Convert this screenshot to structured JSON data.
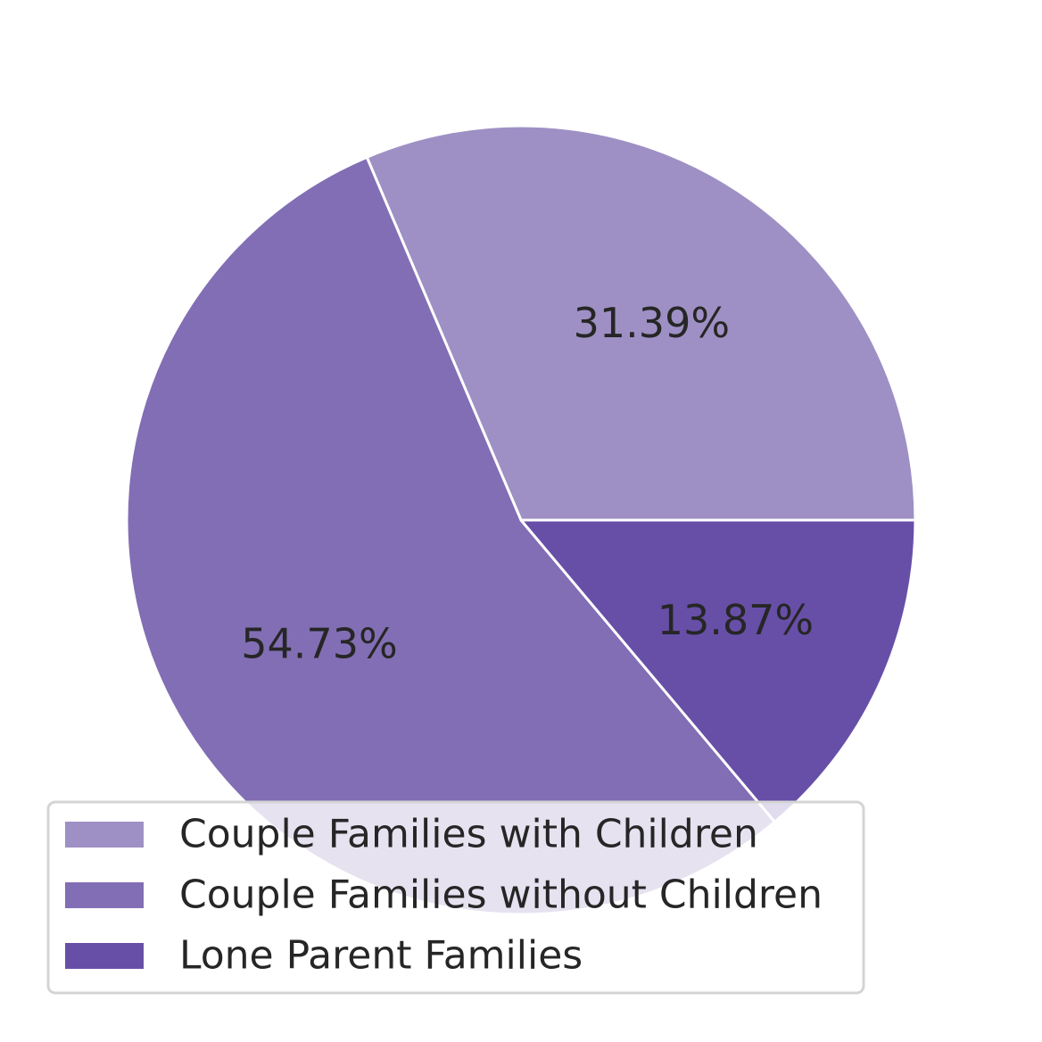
{
  "chart_data": {
    "type": "pie",
    "categories": [
      "Couple Families with Children",
      "Couple Families without Children",
      "Lone Parent Families"
    ],
    "values": [
      31.39,
      54.73,
      13.87
    ],
    "labels": [
      "31.39%",
      "54.73%",
      "13.87%"
    ],
    "colors": [
      "#9e90c4",
      "#826eb4",
      "#674fa8"
    ],
    "start_angle_deg": 0,
    "direction": "counterclockwise",
    "legend": {
      "placement": "lower-left",
      "entries": [
        "Couple Families with Children",
        "Couple Families without Children",
        "Lone Parent Families"
      ]
    },
    "title": "",
    "xlabel": "",
    "ylabel": ""
  }
}
